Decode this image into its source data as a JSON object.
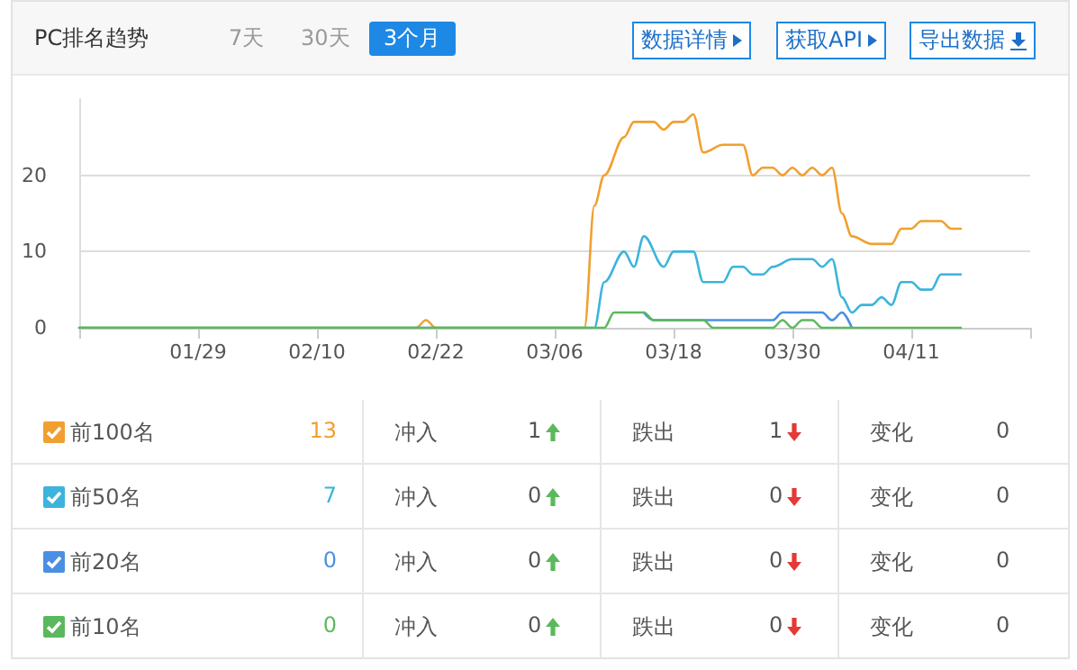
{
  "chart_data": {
    "type": "line",
    "title": "PC排名趋势",
    "xlim": [
      "--01-17",
      "--04-23"
    ],
    "xticks": [
      {
        "value": "--01-17",
        "label": null
      },
      {
        "value": "--01-29",
        "label": "01/29"
      },
      {
        "value": "--02-10",
        "label": "02/10"
      },
      {
        "value": "--02-22",
        "label": "02/22"
      },
      {
        "value": "--03-06",
        "label": "03/06"
      },
      {
        "value": "--03-18",
        "label": "03/18"
      },
      {
        "value": "--03-30",
        "label": "03/30"
      },
      {
        "value": "--04-11",
        "label": "04/11"
      },
      {
        "value": "--04-23",
        "label": null
      }
    ],
    "ylim": [
      0,
      30
    ],
    "yticks": [
      0,
      10,
      20
    ],
    "grid": "y",
    "legend": "bottom",
    "marker": "none",
    "line_style": "solid",
    "series": [
      {
        "name": "前100名",
        "color": "#f0a030",
        "x": [
          "--01-17",
          "--02-20",
          "--02-21",
          "--02-22",
          "--03-09",
          "--03-10",
          "--03-11",
          "--03-13",
          "--03-14",
          "--03-16",
          "--03-17",
          "--03-18",
          "--03-19",
          "--03-20",
          "--03-21",
          "--03-23",
          "--03-25",
          "--03-26",
          "--03-27",
          "--03-28",
          "--03-29",
          "--03-30",
          "--03-31",
          "--04-01",
          "--04-02",
          "--04-03",
          "--04-04",
          "--04-05",
          "--04-07",
          "--04-09",
          "--04-10",
          "--04-11",
          "--04-12",
          "--04-14",
          "--04-15",
          "--04-16"
        ],
        "values": [
          0,
          0,
          1,
          0,
          0,
          16,
          20,
          25,
          27,
          27,
          26,
          27,
          27,
          28,
          23,
          24,
          24,
          20,
          21,
          21,
          20,
          21,
          20,
          21,
          20,
          21,
          15,
          12,
          11,
          11,
          13,
          13,
          14,
          14,
          13,
          13
        ]
      },
      {
        "name": "前50名",
        "color": "#3cb4dc",
        "x": [
          "--01-17",
          "--03-09",
          "--03-10",
          "--03-11",
          "--03-13",
          "--03-14",
          "--03-15",
          "--03-17",
          "--03-18",
          "--03-20",
          "--03-21",
          "--03-23",
          "--03-24",
          "--03-25",
          "--03-26",
          "--03-27",
          "--03-28",
          "--03-30",
          "--04-01",
          "--04-02",
          "--04-03",
          "--04-04",
          "--04-05",
          "--04-06",
          "--04-07",
          "--04-08",
          "--04-09",
          "--04-10",
          "--04-11",
          "--04-12",
          "--04-13",
          "--04-14",
          "--04-16"
        ],
        "values": [
          0,
          0,
          0,
          6,
          10,
          8,
          12,
          8,
          10,
          10,
          6,
          6,
          8,
          8,
          7,
          7,
          8,
          9,
          9,
          8,
          9,
          4,
          2,
          3,
          3,
          4,
          3,
          6,
          6,
          5,
          5,
          7,
          7
        ]
      },
      {
        "name": "前20名",
        "color": "#4a90e2",
        "x": [
          "--03-15",
          "--03-16",
          "--03-28",
          "--03-29",
          "--04-02",
          "--04-03",
          "--04-04",
          "--04-05"
        ],
        "values": [
          2,
          1,
          1,
          2,
          2,
          1,
          2,
          0
        ]
      },
      {
        "name": "前10名",
        "color": "#5cb85c",
        "x": [
          "--01-17",
          "--03-11",
          "--03-12",
          "--03-15",
          "--03-16",
          "--03-21",
          "--03-22",
          "--03-28",
          "--03-29",
          "--03-30",
          "--03-31",
          "--04-01",
          "--04-02",
          "--04-16"
        ],
        "values": [
          0,
          0,
          2,
          2,
          1,
          1,
          0,
          0,
          1,
          0,
          1,
          1,
          0,
          0
        ]
      }
    ],
    "annotations": [
      "7天",
      "30天",
      "3个月",
      "数据详情",
      "获取API",
      "导出数据",
      "13",
      "冲入",
      "1",
      "跌出",
      "1",
      "变化",
      "0",
      "7",
      "冲入",
      "0",
      "跌出",
      "0",
      "变化",
      "0",
      "0",
      "冲入",
      "0",
      "跌出",
      "0",
      "变化",
      "0",
      "0",
      "冲入",
      "0",
      "跌出",
      "0",
      "变化",
      "0"
    ]
  }
}
